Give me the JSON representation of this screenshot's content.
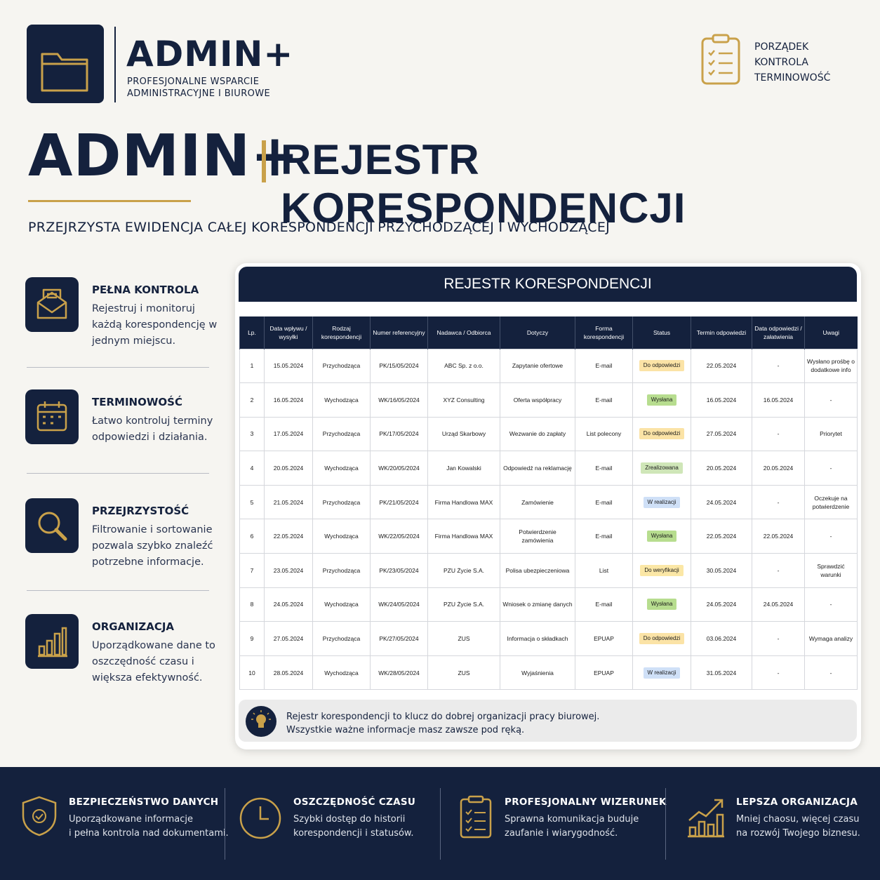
{
  "header": {
    "brand": "ADMIN+",
    "tagline": [
      "PROFESJONALNE WSPARCIE",
      "ADMINISTRACYJNE I BIUROWE"
    ],
    "badge": [
      "PORZĄDEK",
      "KONTROLA",
      "TERMINOWOŚĆ"
    ]
  },
  "title": {
    "brand": "ADMIN+",
    "main": "REJESTR KORESPONDENCJI",
    "subtitle": "PRZEJRZYSTA EWIDENCJA CAŁEJ KORESPONDENCJI PRZYCHODZĄCEJ I WYCHODZĄCEJ"
  },
  "features": [
    {
      "title": "PEŁNA KONTROLA",
      "text": "Rejestruj i monitoruj każdą korespondencję w jednym miejscu."
    },
    {
      "title": "TERMINOWOŚĆ",
      "text": "Łatwo kontroluj terminy odpowiedzi i działania."
    },
    {
      "title": "PRZEJRZYSTOŚĆ",
      "text": "Filtrowanie i sortowanie pozwala szybko znaleźć potrzebne informacje."
    },
    {
      "title": "ORGANIZACJA",
      "text": "Uporządkowane dane to oszczędność czasu i większa efektywność."
    }
  ],
  "table": {
    "title": "REJESTR KORESPONDENCJI",
    "columns": [
      "Lp.",
      "Data wpływu / wysyłki",
      "Rodzaj korespondencji",
      "Numer referencyjny",
      "Nadawca / Odbiorca",
      "Dotyczy",
      "Forma korespondencji",
      "Status",
      "Termin odpowiedzi",
      "Data odpowiedzi / załatwienia",
      "Uwagi"
    ],
    "rows": [
      [
        "1",
        "15.05.2024",
        "Przychodząca",
        "PK/15/05/2024",
        "ABC Sp. z o.o.",
        "Zapytanie ofertowe",
        "E-mail",
        {
          "text": "Do odpowiedzi",
          "color": "#fbe3a6"
        },
        "22.05.2024",
        "-",
        "Wysłano prośbę o dodatkowe info"
      ],
      [
        "2",
        "16.05.2024",
        "Wychodząca",
        "WK/16/05/2024",
        "XYZ Consulting",
        "Oferta współpracy",
        "E-mail",
        {
          "text": "Wysłana",
          "color": "#b7dd8f"
        },
        "16.05.2024",
        "16.05.2024",
        "-"
      ],
      [
        "3",
        "17.05.2024",
        "Przychodząca",
        "PK/17/05/2024",
        "Urząd Skarbowy",
        "Wezwanie do zapłaty",
        "List polecony",
        {
          "text": "Do odpowiedzi",
          "color": "#fbe3a6"
        },
        "27.05.2024",
        "-",
        "Priorytet"
      ],
      [
        "4",
        "20.05.2024",
        "Wychodząca",
        "WK/20/05/2024",
        "Jan Kowalski",
        "Odpowiedź na reklamację",
        "E-mail",
        {
          "text": "Zrealizowana",
          "color": "#cfe6b8"
        },
        "20.05.2024",
        "20.05.2024",
        "-"
      ],
      [
        "5",
        "21.05.2024",
        "Przychodząca",
        "PK/21/05/2024",
        "Firma Handlowa MAX",
        "Zamówienie",
        "E-mail",
        {
          "text": "W realizacji",
          "color": "#cfe0f7"
        },
        "24.05.2024",
        "-",
        "Oczekuje na potwierdzenie"
      ],
      [
        "6",
        "22.05.2024",
        "Wychodząca",
        "WK/22/05/2024",
        "Firma Handlowa MAX",
        "Potwierdzenie zamówienia",
        "E-mail",
        {
          "text": "Wysłana",
          "color": "#b7dd8f"
        },
        "22.05.2024",
        "22.05.2024",
        "-"
      ],
      [
        "7",
        "23.05.2024",
        "Przychodząca",
        "PK/23/05/2024",
        "PZU Życie S.A.",
        "Polisa ubezpieczeniowa",
        "List",
        {
          "text": "Do weryfikacji",
          "color": "#fbe7a6"
        },
        "30.05.2024",
        "-",
        "Sprawdzić warunki"
      ],
      [
        "8",
        "24.05.2024",
        "Wychodząca",
        "WK/24/05/2024",
        "PZU Życie S.A.",
        "Wniosek o zmianę danych",
        "E-mail",
        {
          "text": "Wysłana",
          "color": "#b7dd8f"
        },
        "24.05.2024",
        "24.05.2024",
        "-"
      ],
      [
        "9",
        "27.05.2024",
        "Przychodząca",
        "PK/27/05/2024",
        "ZUS",
        "Informacja o składkach",
        "EPUAP",
        {
          "text": "Do odpowiedzi",
          "color": "#fbe3a6"
        },
        "03.06.2024",
        "-",
        "Wymaga analizy"
      ],
      [
        "10",
        "28.05.2024",
        "Wychodząca",
        "WK/28/05/2024",
        "ZUS",
        "Wyjaśnienia",
        "EPUAP",
        {
          "text": "W realizacji",
          "color": "#cfe0f7"
        },
        "31.05.2024",
        "-",
        "-"
      ]
    ],
    "note": [
      "Rejestr korespondencji to klucz do dobrej organizacji pracy biurowej.",
      "Wszystkie ważne informacje masz zawsze pod ręką."
    ]
  },
  "footer": [
    {
      "title": "BEZPIECZEŃSTWO DANYCH",
      "text": [
        "Uporządkowane informacje",
        "i pełna kontrola nad dokumentami."
      ]
    },
    {
      "title": "OSZCZĘDNOŚĆ CZASU",
      "text": [
        "Szybki dostęp do historii",
        "korespondencji i statusów."
      ]
    },
    {
      "title": "PROFESJONALNY WIZERUNEK",
      "text": [
        "Sprawna komunikacja buduje",
        "zaufanie i wiarygodność."
      ]
    },
    {
      "title": "LEPSZA ORGANIZACJA",
      "text": [
        "Mniej chaosu, więcej czasu",
        "na rozwój Twojego biznesu."
      ]
    }
  ]
}
